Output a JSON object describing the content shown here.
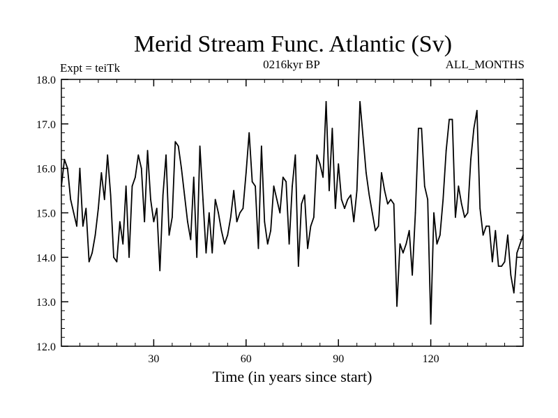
{
  "chart_data": {
    "type": "line",
    "title": "Merid Stream Func. Atlantic (Sv)",
    "experiment_label": "Expt = teiTk",
    "subtitle": "0216kyr BP",
    "period_label": "ALL_MONTHS",
    "xlabel": "Time (in years since start)",
    "ylabel": "",
    "xlim": [
      0,
      150
    ],
    "ylim": [
      12.0,
      18.0
    ],
    "x_ticks": [
      30,
      60,
      90,
      120
    ],
    "x_tick_labels": [
      "30",
      "60",
      "90",
      "120"
    ],
    "y_ticks": [
      12,
      13,
      14,
      15,
      16,
      17,
      18
    ],
    "y_tick_labels": [
      "12.0",
      "13.0",
      "14.0",
      "15.0",
      "16.0",
      "17.0",
      "18.0"
    ],
    "grid": false,
    "line_color": "#000000",
    "series": [
      {
        "name": "Merid Stream Func. Atlantic",
        "x": [
          0,
          1,
          2,
          3,
          4,
          5,
          6,
          7,
          8,
          9,
          10,
          11,
          12,
          13,
          14,
          15,
          16,
          17,
          18,
          19,
          20,
          21,
          22,
          23,
          24,
          25,
          26,
          27,
          28,
          29,
          30,
          31,
          32,
          33,
          34,
          35,
          36,
          37,
          38,
          39,
          40,
          41,
          42,
          43,
          44,
          45,
          46,
          47,
          48,
          49,
          50,
          51,
          52,
          53,
          54,
          55,
          56,
          57,
          58,
          59,
          60,
          61,
          62,
          63,
          64,
          65,
          66,
          67,
          68,
          69,
          70,
          71,
          72,
          73,
          74,
          75,
          76,
          77,
          78,
          79,
          80,
          81,
          82,
          83,
          84,
          85,
          86,
          87,
          88,
          89,
          90,
          91,
          92,
          93,
          94,
          95,
          96,
          97,
          98,
          99,
          100,
          101,
          102,
          103,
          104,
          105,
          106,
          107,
          108,
          109,
          110,
          111,
          112,
          113,
          114,
          115,
          116,
          117,
          118,
          119,
          120,
          121,
          122,
          123,
          124,
          125,
          126,
          127,
          128,
          129,
          130,
          131,
          132,
          133,
          134,
          135,
          136,
          137,
          138,
          139,
          140,
          141,
          142,
          143,
          144,
          145,
          146,
          147,
          148,
          149,
          150
        ],
        "values": [
          15.6,
          16.2,
          16.0,
          15.3,
          15.0,
          14.7,
          16.0,
          14.7,
          15.1,
          13.9,
          14.1,
          14.5,
          15.1,
          15.9,
          15.3,
          16.3,
          15.4,
          14.0,
          13.9,
          14.8,
          14.3,
          15.6,
          14.0,
          15.6,
          15.8,
          16.3,
          16.0,
          14.8,
          16.4,
          15.3,
          14.8,
          15.1,
          13.7,
          15.4,
          16.3,
          14.5,
          14.9,
          16.6,
          16.5,
          16.0,
          15.4,
          14.8,
          14.4,
          15.8,
          14.0,
          16.5,
          15.3,
          14.1,
          15.0,
          14.1,
          15.3,
          15.0,
          14.6,
          14.3,
          14.5,
          14.9,
          15.5,
          14.8,
          15.0,
          15.1,
          15.9,
          16.8,
          15.7,
          15.6,
          14.2,
          16.5,
          14.8,
          14.3,
          14.6,
          15.6,
          15.3,
          15.0,
          15.8,
          15.7,
          14.3,
          15.6,
          16.3,
          13.8,
          15.2,
          15.4,
          14.2,
          14.7,
          14.9,
          16.3,
          16.1,
          15.8,
          17.5,
          15.5,
          16.9,
          15.1,
          16.1,
          15.3,
          15.1,
          15.3,
          15.4,
          14.8,
          15.5,
          17.5,
          16.7,
          15.9,
          15.4,
          15.0,
          14.6,
          14.7,
          15.9,
          15.5,
          15.2,
          15.3,
          15.2,
          12.9,
          14.3,
          14.1,
          14.3,
          14.6,
          13.6,
          15.0,
          16.9,
          16.9,
          15.6,
          15.3,
          12.5,
          15.0,
          14.3,
          14.5,
          15.3,
          16.4,
          17.1,
          17.1,
          14.9,
          15.6,
          15.2,
          14.9,
          15.0,
          16.2,
          16.9,
          17.3,
          15.1,
          14.5,
          14.7,
          14.7,
          13.9,
          14.6,
          13.8,
          13.8,
          13.9,
          14.5,
          13.6,
          13.2,
          14.1,
          14.3,
          14.5
        ]
      }
    ]
  }
}
